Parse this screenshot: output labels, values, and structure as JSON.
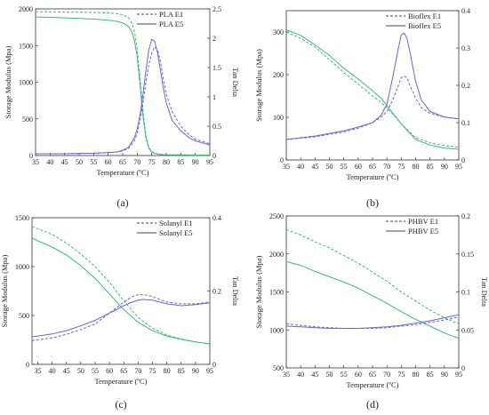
{
  "chart_data": [
    {
      "type": "line",
      "panel_label": "(a)",
      "xlabel": "Temperature (ºC)",
      "ylabel": "Storage Modulus (Mpa)",
      "y2label": "Tan Delta",
      "xlim": [
        35,
        95
      ],
      "ylim": [
        0,
        2000
      ],
      "y2lim": [
        0,
        2.5
      ],
      "xticks": [
        35,
        40,
        45,
        50,
        55,
        60,
        65,
        70,
        75,
        80,
        85,
        90,
        95
      ],
      "yticks": [
        0,
        500,
        1000,
        1500,
        2000
      ],
      "y2ticks": [
        0,
        0.5,
        1,
        1.5,
        2,
        2.5
      ],
      "legend_position": "top-right",
      "series": [
        {
          "name": "PLA E1",
          "axis": "left",
          "dash": "dashed",
          "color": "#3cb878",
          "x": [
            35,
            40,
            45,
            50,
            55,
            60,
            63,
            65,
            67,
            68,
            69,
            70,
            71,
            72,
            73,
            74,
            75,
            77,
            80,
            85,
            90,
            95
          ],
          "y": [
            1960,
            1960,
            1958,
            1955,
            1952,
            1945,
            1935,
            1920,
            1880,
            1820,
            1700,
            1450,
            1050,
            600,
            270,
            110,
            50,
            20,
            10,
            8,
            6,
            5
          ]
        },
        {
          "name": "PLA E5",
          "axis": "left",
          "dash": "solid",
          "color": "#3cb878",
          "x": [
            35,
            40,
            45,
            50,
            55,
            60,
            63,
            65,
            67,
            68,
            69,
            70,
            71,
            72,
            73,
            74,
            75,
            77,
            80,
            85,
            90,
            95
          ],
          "y": [
            1890,
            1885,
            1878,
            1870,
            1860,
            1845,
            1830,
            1810,
            1760,
            1700,
            1580,
            1350,
            950,
            530,
            240,
            100,
            45,
            18,
            10,
            8,
            6,
            5
          ]
        },
        {
          "name": "PLA E1",
          "axis": "right",
          "dash": "dashed",
          "color": "#6e64c8",
          "x": [
            35,
            45,
            55,
            60,
            63,
            65,
            67,
            69,
            70,
            71,
            72,
            73,
            74,
            75,
            76,
            77,
            78,
            79,
            80,
            82,
            85,
            88,
            90,
            95
          ],
          "y": [
            0.03,
            0.03,
            0.04,
            0.05,
            0.06,
            0.08,
            0.12,
            0.25,
            0.38,
            0.6,
            0.9,
            1.25,
            1.55,
            1.75,
            1.85,
            1.8,
            1.6,
            1.3,
            1.05,
            0.75,
            0.5,
            0.35,
            0.28,
            0.2
          ]
        },
        {
          "name": "PLA E5",
          "axis": "right",
          "dash": "solid",
          "color": "#6e64c8",
          "x": [
            35,
            45,
            55,
            60,
            63,
            65,
            67,
            69,
            70,
            71,
            72,
            73,
            74,
            75,
            76,
            77,
            78,
            79,
            80,
            82,
            85,
            88,
            90,
            95
          ],
          "y": [
            0.03,
            0.03,
            0.04,
            0.05,
            0.06,
            0.09,
            0.14,
            0.3,
            0.45,
            0.7,
            1.05,
            1.45,
            1.8,
            1.98,
            1.95,
            1.75,
            1.45,
            1.15,
            0.9,
            0.6,
            0.42,
            0.3,
            0.25,
            0.18
          ]
        }
      ]
    },
    {
      "type": "line",
      "panel_label": "(b)",
      "xlabel": "Temperature (ºC)",
      "ylabel": "Storage Modulus (Mpa)",
      "y2label": "",
      "xlim": [
        35,
        95
      ],
      "ylim": [
        0,
        350
      ],
      "y2lim": [
        0,
        0.4
      ],
      "xticks": [
        35,
        40,
        45,
        50,
        55,
        60,
        65,
        70,
        75,
        80,
        85,
        90,
        95
      ],
      "yticks": [
        0,
        100,
        200,
        300
      ],
      "y2ticks": [
        0,
        0.1,
        0.2,
        0.3,
        0.4
      ],
      "legend_position": "top-right",
      "series": [
        {
          "name": "Bioflex E1",
          "axis": "left",
          "dash": "dashed",
          "color": "#3cb878",
          "x": [
            35,
            40,
            45,
            50,
            55,
            60,
            65,
            68,
            70,
            72,
            75,
            78,
            80,
            85,
            90,
            95
          ],
          "y": [
            300,
            285,
            265,
            235,
            205,
            178,
            150,
            135,
            122,
            108,
            85,
            65,
            52,
            40,
            34,
            30
          ]
        },
        {
          "name": "Bioflex E5",
          "axis": "left",
          "dash": "solid",
          "color": "#3cb878",
          "x": [
            35,
            40,
            45,
            50,
            55,
            60,
            65,
            68,
            70,
            72,
            75,
            78,
            80,
            85,
            90,
            95
          ],
          "y": [
            305,
            292,
            270,
            245,
            215,
            190,
            162,
            145,
            128,
            110,
            85,
            62,
            48,
            35,
            28,
            25
          ]
        },
        {
          "name": "Bioflex E1",
          "axis": "right",
          "dash": "dashed",
          "color": "#6e64c8",
          "x": [
            35,
            45,
            55,
            60,
            65,
            68,
            70,
            72,
            74,
            75,
            76,
            77,
            78,
            80,
            82,
            85,
            90,
            95
          ],
          "y": [
            0.055,
            0.062,
            0.075,
            0.085,
            0.1,
            0.115,
            0.13,
            0.16,
            0.2,
            0.22,
            0.225,
            0.22,
            0.2,
            0.165,
            0.14,
            0.125,
            0.115,
            0.11
          ]
        },
        {
          "name": "Bioflex E5",
          "axis": "right",
          "dash": "solid",
          "color": "#6e64c8",
          "x": [
            35,
            45,
            55,
            60,
            65,
            68,
            70,
            72,
            74,
            75,
            76,
            77,
            78,
            80,
            82,
            85,
            90,
            95
          ],
          "y": [
            0.055,
            0.064,
            0.078,
            0.088,
            0.1,
            0.12,
            0.15,
            0.22,
            0.3,
            0.335,
            0.34,
            0.325,
            0.29,
            0.21,
            0.16,
            0.13,
            0.115,
            0.11
          ]
        }
      ]
    },
    {
      "type": "line",
      "panel_label": "(c)",
      "xlabel": "Temperature (ºC)",
      "ylabel": "Storage Modulus (Mpa)",
      "y2label": "Tan Delta",
      "xlim": [
        33,
        95
      ],
      "ylim": [
        0,
        1500
      ],
      "y2lim": [
        0,
        0.4
      ],
      "xticks": [
        35,
        40,
        45,
        50,
        55,
        60,
        65,
        70,
        75,
        80,
        85,
        90,
        95
      ],
      "yticks": [
        0,
        500,
        1000,
        1500
      ],
      "y2ticks": [
        0,
        0.2,
        0.4
      ],
      "legend_position": "top-right",
      "series": [
        {
          "name": "Solanyl E1",
          "axis": "left",
          "dash": "dashed",
          "color": "#3cb878",
          "x": [
            33,
            40,
            45,
            50,
            55,
            60,
            65,
            70,
            75,
            80,
            85,
            90,
            95
          ],
          "y": [
            1410,
            1330,
            1240,
            1130,
            1000,
            840,
            650,
            480,
            370,
            300,
            260,
            230,
            210
          ]
        },
        {
          "name": "Solanyl E5",
          "axis": "left",
          "dash": "solid",
          "color": "#3cb878",
          "x": [
            33,
            40,
            45,
            50,
            55,
            60,
            65,
            70,
            75,
            80,
            85,
            90,
            95
          ],
          "y": [
            1290,
            1200,
            1120,
            1010,
            880,
            720,
            560,
            430,
            345,
            290,
            255,
            230,
            210
          ]
        },
        {
          "name": "Solanyl E1",
          "axis": "right",
          "dash": "dashed",
          "color": "#6e64c8",
          "x": [
            33,
            40,
            45,
            50,
            55,
            60,
            65,
            68,
            70,
            72,
            75,
            80,
            85,
            90,
            95
          ],
          "y": [
            0.065,
            0.072,
            0.082,
            0.095,
            0.11,
            0.14,
            0.17,
            0.185,
            0.19,
            0.19,
            0.185,
            0.17,
            0.165,
            0.165,
            0.17
          ]
        },
        {
          "name": "Solanyl E5",
          "axis": "right",
          "dash": "solid",
          "color": "#6e64c8",
          "x": [
            33,
            40,
            45,
            50,
            55,
            60,
            65,
            68,
            70,
            72,
            75,
            80,
            85,
            90,
            95
          ],
          "y": [
            0.075,
            0.083,
            0.092,
            0.105,
            0.12,
            0.14,
            0.16,
            0.17,
            0.175,
            0.177,
            0.175,
            0.165,
            0.16,
            0.163,
            0.168
          ]
        }
      ]
    },
    {
      "type": "line",
      "panel_label": "(d)",
      "xlabel": "Temperature (ºC)",
      "ylabel": "Storage Modulus (Mpa)",
      "y2label": "Tan Delta",
      "xlim": [
        35,
        95
      ],
      "ylim": [
        500,
        2500
      ],
      "y2lim": [
        0,
        0.2
      ],
      "xticks": [
        35,
        40,
        45,
        50,
        55,
        60,
        65,
        70,
        75,
        80,
        85,
        90,
        95
      ],
      "yticks": [
        500,
        1000,
        1500,
        2000,
        2500
      ],
      "y2ticks": [
        0,
        0.05,
        0.1,
        0.15,
        0.2
      ],
      "legend_position": "top-right",
      "series": [
        {
          "name": "PHBV E1",
          "axis": "left",
          "dash": "dashed",
          "color": "#3cb878",
          "x": [
            35,
            40,
            45,
            50,
            55,
            60,
            65,
            70,
            75,
            80,
            85,
            90,
            95
          ],
          "y": [
            2320,
            2250,
            2160,
            2080,
            1980,
            1880,
            1760,
            1640,
            1500,
            1380,
            1260,
            1160,
            1080
          ]
        },
        {
          "name": "PHBV E5",
          "axis": "left",
          "dash": "solid",
          "color": "#3cb878",
          "x": [
            35,
            40,
            45,
            50,
            55,
            60,
            65,
            70,
            75,
            80,
            85,
            90,
            95
          ],
          "y": [
            1900,
            1850,
            1770,
            1700,
            1630,
            1550,
            1450,
            1350,
            1240,
            1140,
            1050,
            960,
            890
          ]
        },
        {
          "name": "PHBV E1",
          "axis": "right",
          "dash": "dashed",
          "color": "#6e64c8",
          "x": [
            35,
            40,
            45,
            50,
            55,
            60,
            65,
            70,
            75,
            80,
            85,
            90,
            95
          ],
          "y": [
            0.058,
            0.056,
            0.054,
            0.053,
            0.052,
            0.052,
            0.052,
            0.053,
            0.055,
            0.057,
            0.06,
            0.063,
            0.067
          ]
        },
        {
          "name": "PHBV E5",
          "axis": "right",
          "dash": "solid",
          "color": "#6e64c8",
          "x": [
            35,
            40,
            45,
            50,
            55,
            60,
            65,
            70,
            75,
            80,
            85,
            90,
            95
          ],
          "y": [
            0.055,
            0.054,
            0.053,
            0.052,
            0.052,
            0.052,
            0.053,
            0.054,
            0.056,
            0.059,
            0.062,
            0.066,
            0.07
          ]
        }
      ]
    }
  ]
}
